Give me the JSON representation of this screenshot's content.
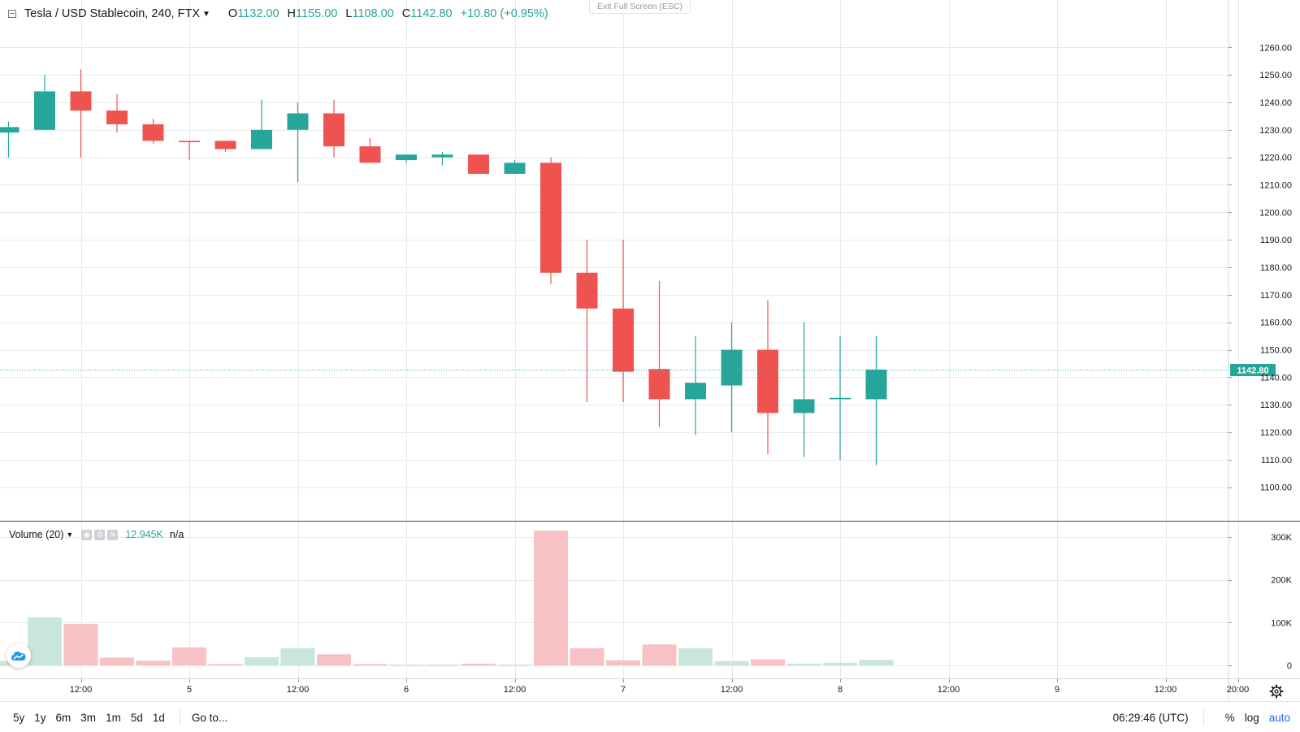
{
  "header": {
    "symbol_title": "Tesla / USD Stablecoin, 240, FTX",
    "open_label": "O",
    "open_value": "1132.00",
    "high_label": "H",
    "high_value": "1155.00",
    "low_label": "L",
    "low_value": "1108.00",
    "close_label": "C",
    "close_value": "1142.80",
    "change": "+10.80 (+0.95%)",
    "exit_fullscreen": "Exit Full Screen (ESC)"
  },
  "volume_panel": {
    "title": "Volume (20)",
    "value": "12.945K",
    "ma_value": "n/a"
  },
  "bottom_bar": {
    "ranges": [
      "5y",
      "1y",
      "6m",
      "3m",
      "1m",
      "5d",
      "1d"
    ],
    "goto": "Go to...",
    "clock": "06:29:46 (UTC)",
    "percent": "%",
    "log": "log",
    "auto": "auto"
  },
  "colors": {
    "up": "#26a69a",
    "down": "#ef5350",
    "up_volume": "#c8e6d9",
    "down_volume": "#f8c1c4",
    "grid": "#e8e9ee",
    "last_price": "#26a69a"
  },
  "chart_data": {
    "type": "candlestick",
    "title": "Tesla / USD Stablecoin, 240, FTX",
    "interval_hours": 4,
    "last_price": 1142.8,
    "last_price_label": "1142.80",
    "price_axis": {
      "ylim": [
        1094,
        1266
      ],
      "ticks": [
        1100,
        1110,
        1120,
        1130,
        1140,
        1150,
        1160,
        1170,
        1180,
        1190,
        1200,
        1210,
        1220,
        1230,
        1240,
        1250,
        1260
      ],
      "tick_labels": [
        "1100.00",
        "1110.00",
        "1120.00",
        "1130.00",
        "1140.00",
        "1150.00",
        "1160.00",
        "1170.00",
        "1180.00",
        "1190.00",
        "1200.00",
        "1210.00",
        "1220.00",
        "1230.00",
        "1240.00",
        "1250.00",
        "1260.00"
      ]
    },
    "volume_axis": {
      "ylim": [
        0,
        340000
      ],
      "ticks": [
        0,
        100000,
        200000,
        300000
      ],
      "tick_labels": [
        "0",
        "100K",
        "200K",
        "300K"
      ]
    },
    "time_axis": {
      "ticks": [
        {
          "label": "12:00",
          "bar": 2
        },
        {
          "label": "5",
          "bar": 5
        },
        {
          "label": "12:00",
          "bar": 8
        },
        {
          "label": "6",
          "bar": 11
        },
        {
          "label": "12:00",
          "bar": 14
        },
        {
          "label": "7",
          "bar": 17
        },
        {
          "label": "12:00",
          "bar": 20
        },
        {
          "label": "8",
          "bar": 23
        },
        {
          "label": "12:00",
          "bar": 26
        },
        {
          "label": "9",
          "bar": 29
        },
        {
          "label": "12:00",
          "bar": 32
        },
        {
          "label": "20:00",
          "bar": 34
        }
      ]
    },
    "candles": [
      {
        "o": 1229,
        "h": 1233,
        "l": 1220,
        "c": 1231,
        "v": 10000
      },
      {
        "o": 1230,
        "h": 1250,
        "l": 1230,
        "c": 1244,
        "v": 112000
      },
      {
        "o": 1244,
        "h": 1252,
        "l": 1220,
        "c": 1237,
        "v": 97000
      },
      {
        "o": 1237,
        "h": 1243,
        "l": 1229,
        "c": 1232,
        "v": 18000
      },
      {
        "o": 1232,
        "h": 1234,
        "l": 1225,
        "c": 1226,
        "v": 11000
      },
      {
        "o": 1226,
        "h": 1226,
        "l": 1219,
        "c": 1225.5,
        "v": 42000
      },
      {
        "o": 1226,
        "h": 1226,
        "l": 1222,
        "c": 1223,
        "v": 3000
      },
      {
        "o": 1223,
        "h": 1241,
        "l": 1223,
        "c": 1230,
        "v": 19000
      },
      {
        "o": 1230,
        "h": 1240,
        "l": 1211,
        "c": 1236,
        "v": 40000
      },
      {
        "o": 1236,
        "h": 1241,
        "l": 1220,
        "c": 1224,
        "v": 26000
      },
      {
        "o": 1224,
        "h": 1227,
        "l": 1218,
        "c": 1218,
        "v": 3000
      },
      {
        "o": 1219,
        "h": 1221,
        "l": 1218,
        "c": 1221,
        "v": 500
      },
      {
        "o": 1220,
        "h": 1222,
        "l": 1217,
        "c": 1221,
        "v": 2000
      },
      {
        "o": 1221,
        "h": 1221,
        "l": 1214,
        "c": 1214,
        "v": 4000
      },
      {
        "o": 1214,
        "h": 1219,
        "l": 1214,
        "c": 1218,
        "v": 2000
      },
      {
        "o": 1218,
        "h": 1220,
        "l": 1174,
        "c": 1178,
        "v": 315000
      },
      {
        "o": 1178,
        "h": 1190,
        "l": 1131,
        "c": 1165,
        "v": 40000
      },
      {
        "o": 1165,
        "h": 1190,
        "l": 1131,
        "c": 1142,
        "v": 12000
      },
      {
        "o": 1143,
        "h": 1175,
        "l": 1122,
        "c": 1132,
        "v": 49000
      },
      {
        "o": 1132,
        "h": 1155,
        "l": 1119,
        "c": 1138,
        "v": 40000
      },
      {
        "o": 1137,
        "h": 1160,
        "l": 1120,
        "c": 1150,
        "v": 10000
      },
      {
        "o": 1150,
        "h": 1168,
        "l": 1112,
        "c": 1127,
        "v": 14000
      },
      {
        "o": 1127,
        "h": 1160,
        "l": 1111,
        "c": 1132,
        "v": 4000
      },
      {
        "o": 1132,
        "h": 1155,
        "l": 1110,
        "c": 1132.5,
        "v": 6000
      },
      {
        "o": 1132,
        "h": 1155,
        "l": 1108,
        "c": 1142.8,
        "v": 12945
      }
    ]
  }
}
